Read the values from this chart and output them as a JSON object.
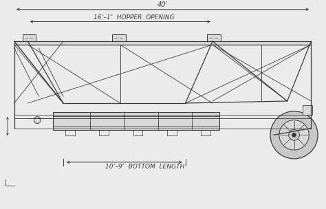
{
  "bg_color": "#ebebeb",
  "line_color": "#3a3a3a",
  "fill_light": "#d8d8d8",
  "fill_mid": "#c8c8c8",
  "title_40ft": "40'",
  "label_hopper": "16’–1″  HOPPER  OPENING",
  "label_bottom": "10’–9″  BOTTOM  LENGTH",
  "figsize": [
    4.74,
    3.04
  ],
  "dpi": 100
}
